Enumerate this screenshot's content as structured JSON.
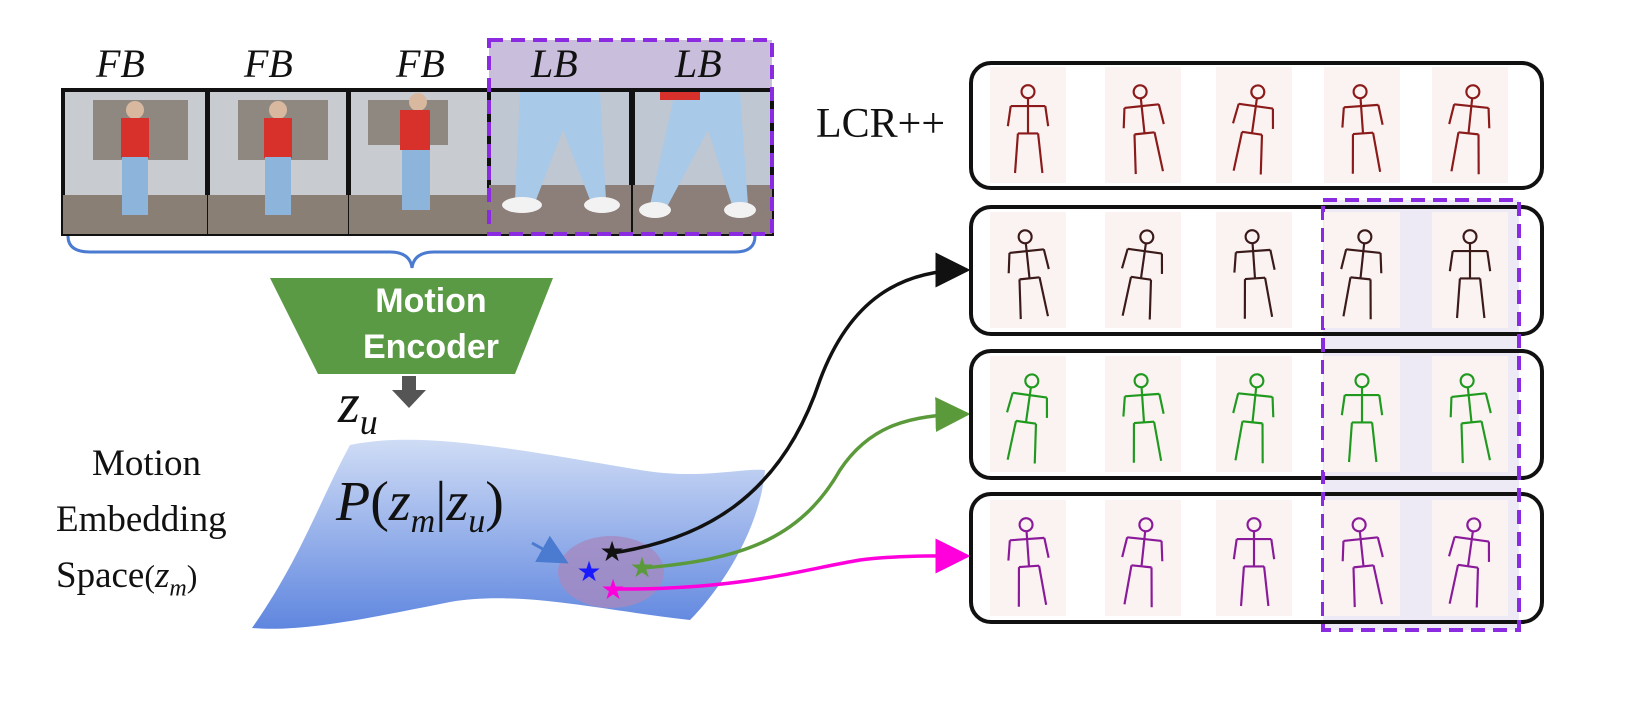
{
  "frames": {
    "labels": [
      "FB",
      "FB",
      "FB",
      "LB",
      "LB"
    ]
  },
  "encoder": {
    "line1": "Motion",
    "line2": "Encoder",
    "latent": "z",
    "latent_sub": "u"
  },
  "space": {
    "label_line1": "Motion",
    "label_line2": "Embedding",
    "label_line3": "Space",
    "label_var": "z",
    "label_var_sub": "m",
    "prob_P": "P",
    "prob_z1": "z",
    "prob_z1_sub": "m",
    "prob_z2": "z",
    "prob_z2_sub": "u"
  },
  "rows": {
    "baseline_label": "LCR++",
    "colors": [
      "#8b1a1a",
      "#3b1a1a",
      "#1f9a1f",
      "#8a1a9a"
    ]
  },
  "colors": {
    "encoder_green": "#5b9a45",
    "lb_highlight": "#c9bedb",
    "dash_purple": "#8a2be2",
    "brace_blue": "#4a7bd0",
    "arrow_black": "#111111",
    "arrow_green": "#5b9a3a",
    "arrow_magenta": "#ff00dd",
    "star_blue": "#1a1aff"
  }
}
